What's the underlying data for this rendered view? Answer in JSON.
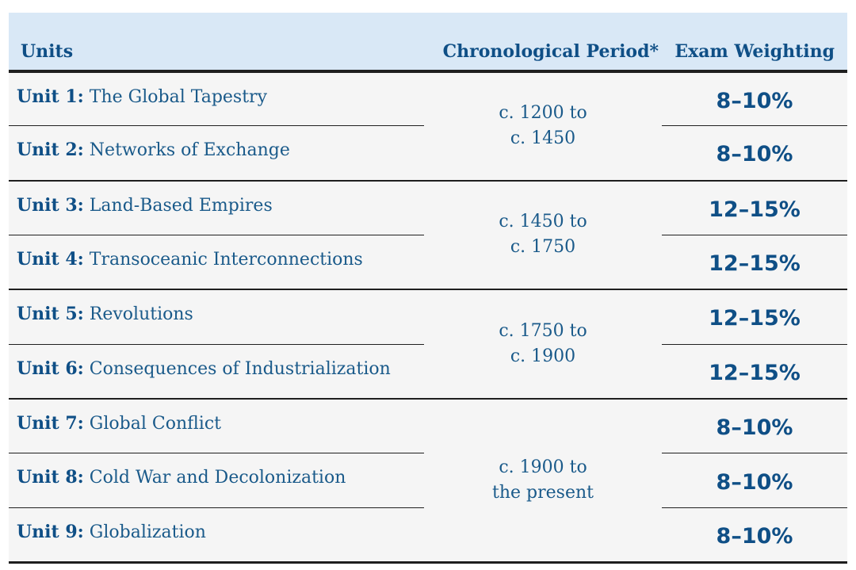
{
  "headers": {
    "units": "Units",
    "period": "Chronological Period*",
    "weighting": "Exam Weighting"
  },
  "units": [
    {
      "label": "Unit 1:",
      "title": "The Global Tapestry",
      "weighting": "8–10%"
    },
    {
      "label": "Unit 2:",
      "title": "Networks of Exchange",
      "weighting": "8–10%"
    },
    {
      "label": "Unit 3:",
      "title": "Land-Based Empires",
      "weighting": "12–15%"
    },
    {
      "label": "Unit 4:",
      "title": "Transoceanic Interconnections",
      "weighting": "12–15%"
    },
    {
      "label": "Unit 5:",
      "title": "Revolutions",
      "weighting": "12–15%"
    },
    {
      "label": "Unit 6:",
      "title": "Consequences of Industrialization",
      "weighting": "12–15%"
    },
    {
      "label": "Unit 7:",
      "title": "Global Conflict",
      "weighting": "8–10%"
    },
    {
      "label": "Unit 8:",
      "title": "Cold War and Decolonization",
      "weighting": "8–10%"
    },
    {
      "label": "Unit 9:",
      "title": "Globalization",
      "weighting": "8–10%"
    }
  ],
  "periods": [
    {
      "line1": "c. 1200 to",
      "line2": "c. 1450"
    },
    {
      "line1": "c. 1450 to",
      "line2": "c. 1750"
    },
    {
      "line1": "c. 1750 to",
      "line2": "c. 1900"
    },
    {
      "line1": "c. 1900 to",
      "line2": "the present"
    }
  ],
  "colors": {
    "header_background": "#d9e8f6",
    "body_background": "#f5f5f5",
    "text_blue": "#1a5a8a",
    "heading_blue": "#0f4f86",
    "rule": "#1f1f1f"
  }
}
